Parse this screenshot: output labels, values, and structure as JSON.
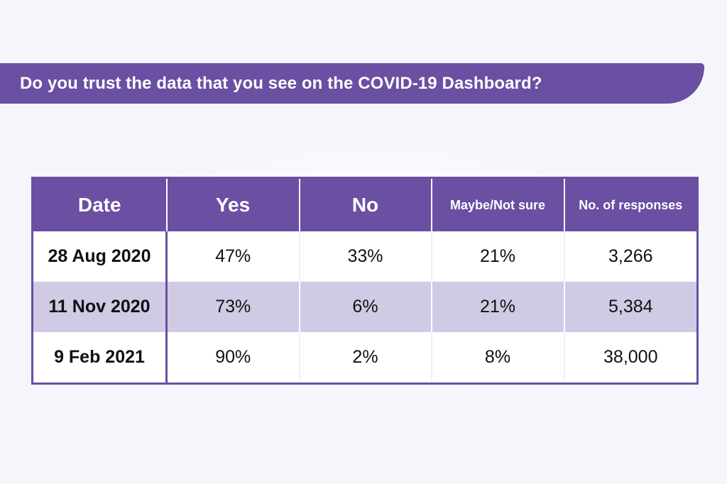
{
  "title": "Do you trust the data that you see on the COVID-19 Dashboard?",
  "colors": {
    "accent": "#6a4fa2",
    "row_highlight": "#d0cae4",
    "background": "#f5f6fb"
  },
  "table": {
    "headers": [
      "Date",
      "Yes",
      "No",
      "Maybe/Not sure",
      "No. of responses"
    ],
    "rows": [
      [
        "28 Aug 2020",
        "47%",
        "33%",
        "21%",
        "3,266"
      ],
      [
        "11 Nov 2020",
        "73%",
        "6%",
        "21%",
        "5,384"
      ],
      [
        "9 Feb 2021",
        "90%",
        "2%",
        "8%",
        "38,000"
      ]
    ]
  }
}
